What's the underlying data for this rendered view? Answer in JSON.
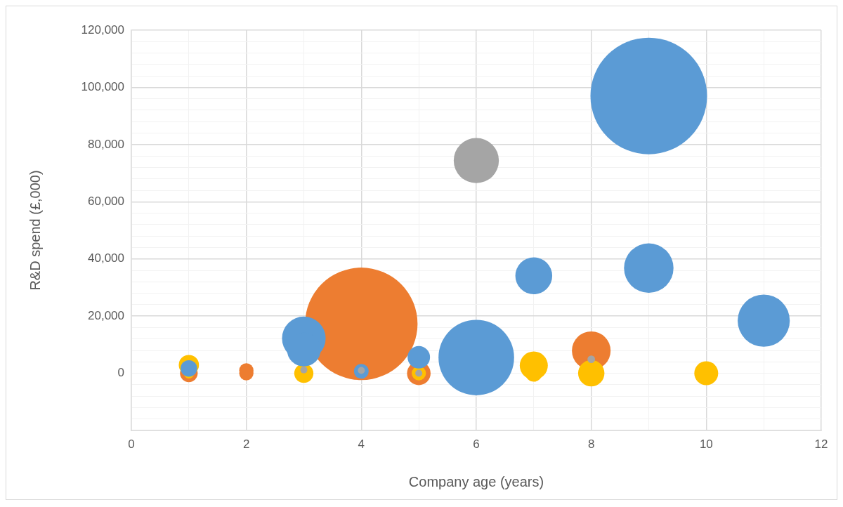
{
  "chart_data": {
    "type": "bubble",
    "xlabel": "Company age (years)",
    "ylabel": "R&D spend (£,000)",
    "xlim": [
      0,
      12
    ],
    "ylim": [
      -20000,
      120000
    ],
    "xticks": [
      0,
      {
        "value": 1,
        "label": null
      },
      2,
      {
        "value": 3,
        "label": null
      },
      4,
      {
        "value": 5,
        "label": null
      },
      6,
      {
        "value": 7,
        "label": null
      },
      8,
      {
        "value": 9,
        "label": null
      },
      10,
      {
        "value": 11,
        "label": null
      },
      12
    ],
    "yticks": [
      {
        "value": -20000,
        "label": null
      },
      {
        "value": -16000,
        "label": null
      },
      {
        "value": -12000,
        "label": null
      },
      {
        "value": -8000,
        "label": null
      },
      {
        "value": -4000,
        "label": null
      },
      0,
      {
        "value": 4000,
        "label": null
      },
      {
        "value": 8000,
        "label": null
      },
      {
        "value": 12000,
        "label": null
      },
      {
        "value": 16000,
        "label": null
      },
      {
        "value": 20000,
        "label": "20,000"
      },
      {
        "value": 24000,
        "label": null
      },
      {
        "value": 28000,
        "label": null
      },
      {
        "value": 32000,
        "label": null
      },
      {
        "value": 36000,
        "label": null
      },
      {
        "value": 40000,
        "label": "40,000"
      },
      {
        "value": 44000,
        "label": null
      },
      {
        "value": 48000,
        "label": null
      },
      {
        "value": 52000,
        "label": null
      },
      {
        "value": 56000,
        "label": null
      },
      {
        "value": 60000,
        "label": "60,000"
      },
      {
        "value": 64000,
        "label": null
      },
      {
        "value": 68000,
        "label": null
      },
      {
        "value": 72000,
        "label": null
      },
      {
        "value": 76000,
        "label": null
      },
      {
        "value": 80000,
        "label": "80,000"
      },
      {
        "value": 84000,
        "label": null
      },
      {
        "value": 88000,
        "label": null
      },
      {
        "value": 92000,
        "label": null
      },
      {
        "value": 96000,
        "label": null
      },
      {
        "value": 100000,
        "label": "100,000"
      },
      {
        "value": 104000,
        "label": null
      },
      {
        "value": 108000,
        "label": null
      },
      {
        "value": 112000,
        "label": null
      },
      {
        "value": 116000,
        "label": null
      },
      {
        "value": 120000,
        "label": "120,000"
      }
    ],
    "grid": true,
    "legend": false,
    "series": [
      {
        "color": "#ed7d31",
        "x": [
          4,
          8,
          5,
          2,
          2,
          1
        ],
        "values": [
          17300,
          7900,
          0,
          1000,
          0,
          0
        ],
        "sizes": [
          0.93,
          0.11,
          0.041,
          0.015,
          0.015,
          0.023
        ]
      },
      {
        "color": "#ffc000",
        "x": [
          1,
          1,
          3,
          5,
          7,
          7,
          8,
          10
        ],
        "values": [
          2900,
          0,
          0,
          0,
          2700,
          0,
          0,
          0
        ],
        "sizes": [
          0.03,
          0.008,
          0.027,
          0.015,
          0.058,
          0.021,
          0.051,
          0.042
        ]
      },
      {
        "color": "#5b9bd5",
        "x": [
          9,
          6,
          7,
          9,
          11,
          3,
          3,
          5,
          4,
          1
        ],
        "values": [
          97000,
          5500,
          34100,
          36800,
          18400,
          12200,
          8300,
          5600,
          700,
          1700
        ],
        "sizes": [
          1,
          0.42,
          0.1,
          0.18,
          0.2,
          0.14,
          0.084,
          0.037,
          0.016,
          0.02
        ]
      },
      {
        "color": "#a5a5a5",
        "x": [
          6,
          3,
          4,
          5,
          8
        ],
        "values": [
          74400,
          1200,
          1000,
          0,
          4900
        ],
        "sizes": [
          0.15,
          0.0036,
          0.0036,
          0.0036,
          0.0042
        ]
      }
    ]
  }
}
